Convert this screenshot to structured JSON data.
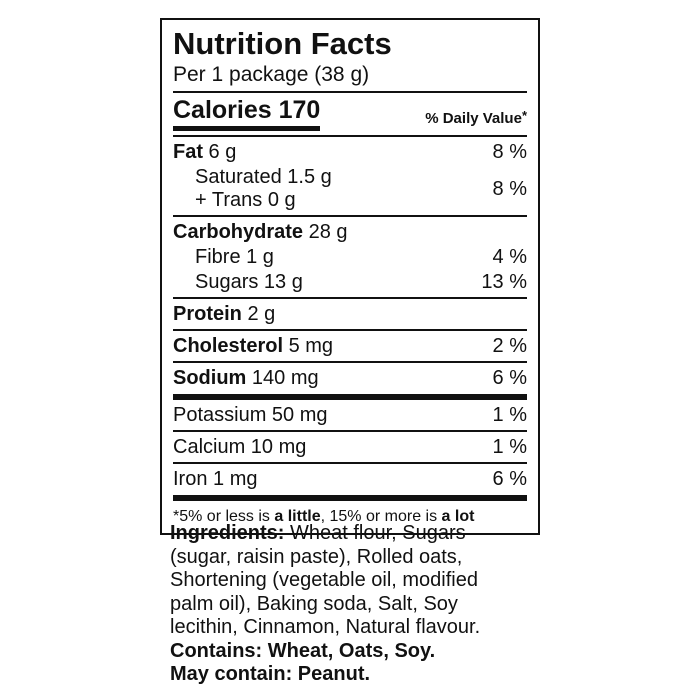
{
  "label": {
    "title": "Nutrition Facts",
    "serving": "Per 1 package (38 g)",
    "calories": "Calories 170",
    "daily_value_header": "% Daily Value",
    "daily_value_asterisk": "*",
    "rows": {
      "fat": {
        "name": "Fat",
        "amount": " 6 g",
        "dv": "8 %"
      },
      "saturated": {
        "line1": "Saturated 1.5 g",
        "line2": "+ Trans 0 g",
        "dv": "8 %"
      },
      "carbohydrate": {
        "name": "Carbohydrate",
        "amount": " 28 g",
        "dv": ""
      },
      "fibre": {
        "name": "Fibre 1 g",
        "dv": "4 %"
      },
      "sugars": {
        "name": "Sugars 13 g",
        "dv": "13 %"
      },
      "protein": {
        "name": "Protein",
        "amount": " 2 g",
        "dv": ""
      },
      "cholesterol": {
        "name": "Cholesterol",
        "amount": " 5 mg",
        "dv": "2 %"
      },
      "sodium": {
        "name": "Sodium",
        "amount": " 140 mg",
        "dv": "6 %"
      },
      "potassium": {
        "name": "Potassium 50 mg",
        "dv": "1 %"
      },
      "calcium": {
        "name": "Calcium 10 mg",
        "dv": "1 %"
      },
      "iron": {
        "name": "Iron 1 mg",
        "dv": "6 %"
      }
    },
    "footnote": {
      "asterisk": "*",
      "part1": "5% or less is ",
      "bold1": "a little",
      "part2": ", 15% or more is ",
      "bold2": "a lot"
    }
  },
  "ingredients": {
    "heading": "Ingredients:",
    "text": " Wheat flour, Sugars (sugar, raisin paste), Rolled oats, Shortening (vegetable oil, modified palm oil), Baking soda, Salt, Soy lecithin, Cinnamon, Natural flavour.",
    "contains": "Contains: Wheat, Oats, Soy.",
    "may_contain": "May contain: Peanut."
  }
}
